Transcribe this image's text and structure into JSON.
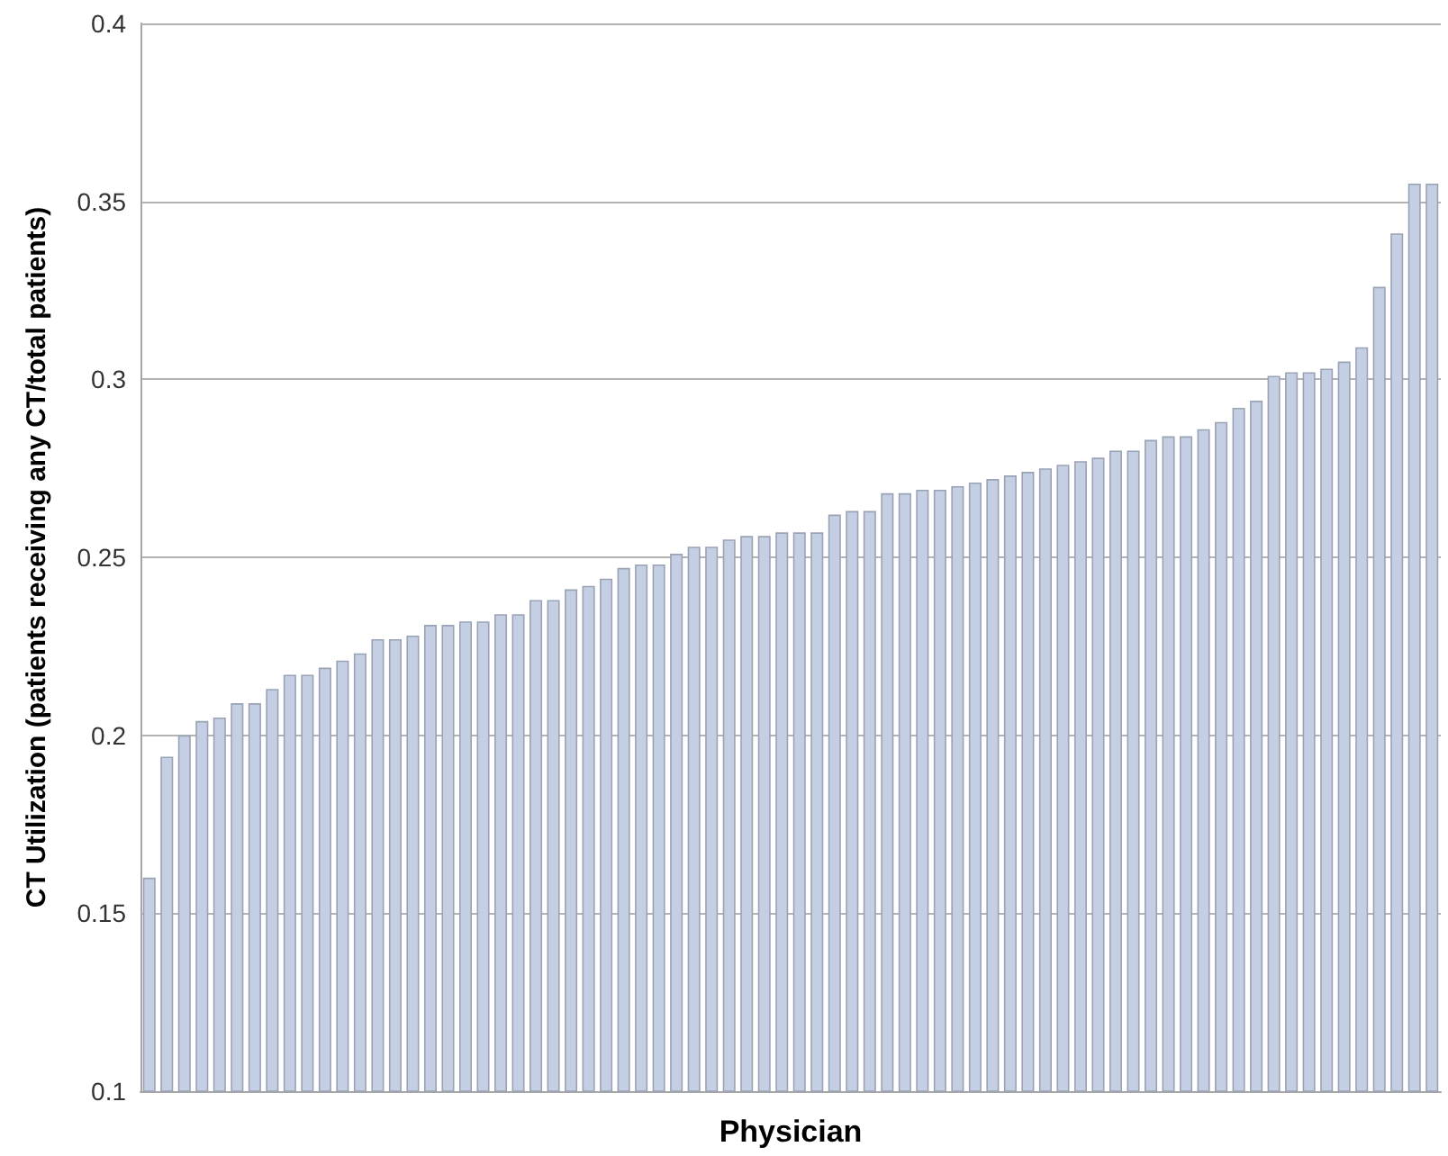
{
  "chart_data": {
    "type": "bar",
    "xlabel": "Physician",
    "ylabel": "CT Utilization (patients receiving any CT/total patients)",
    "categories": [
      null,
      null,
      null,
      null,
      null,
      null,
      null,
      null,
      null,
      null,
      null,
      null,
      null,
      null,
      null,
      null,
      null,
      null,
      null,
      null,
      null,
      null,
      null,
      null,
      null,
      null,
      null,
      null,
      null,
      null,
      null,
      null,
      null,
      null,
      null,
      null,
      null,
      null,
      null,
      null,
      null,
      null,
      null,
      null,
      null,
      null,
      null,
      null,
      null,
      null,
      null,
      null,
      null,
      null,
      null,
      null,
      null,
      null,
      null,
      null,
      null,
      null,
      null,
      null,
      null,
      null,
      null,
      null,
      null,
      null,
      null,
      null,
      null,
      null
    ],
    "values": [
      0.16,
      0.194,
      0.2,
      0.204,
      0.205,
      0.209,
      0.209,
      0.213,
      0.217,
      0.217,
      0.219,
      0.221,
      0.223,
      0.227,
      0.227,
      0.228,
      0.231,
      0.231,
      0.232,
      0.232,
      0.234,
      0.234,
      0.238,
      0.238,
      0.241,
      0.242,
      0.244,
      0.247,
      0.248,
      0.248,
      0.251,
      0.253,
      0.253,
      0.255,
      0.256,
      0.256,
      0.257,
      0.257,
      0.257,
      0.262,
      0.263,
      0.263,
      0.268,
      0.268,
      0.269,
      0.269,
      0.27,
      0.271,
      0.272,
      0.273,
      0.274,
      0.275,
      0.276,
      0.277,
      0.278,
      0.28,
      0.28,
      0.283,
      0.284,
      0.284,
      0.286,
      0.288,
      0.292,
      0.294,
      0.301,
      0.302,
      0.302,
      0.303,
      0.305,
      0.309,
      0.326,
      0.341,
      0.355,
      0.355
    ],
    "color": "#c5cfe3",
    "ylim": [
      0.1,
      0.4
    ],
    "yticks": [
      0.1,
      0.15,
      0.2,
      0.25,
      0.3,
      0.35,
      0.4
    ],
    "grid": "y"
  }
}
